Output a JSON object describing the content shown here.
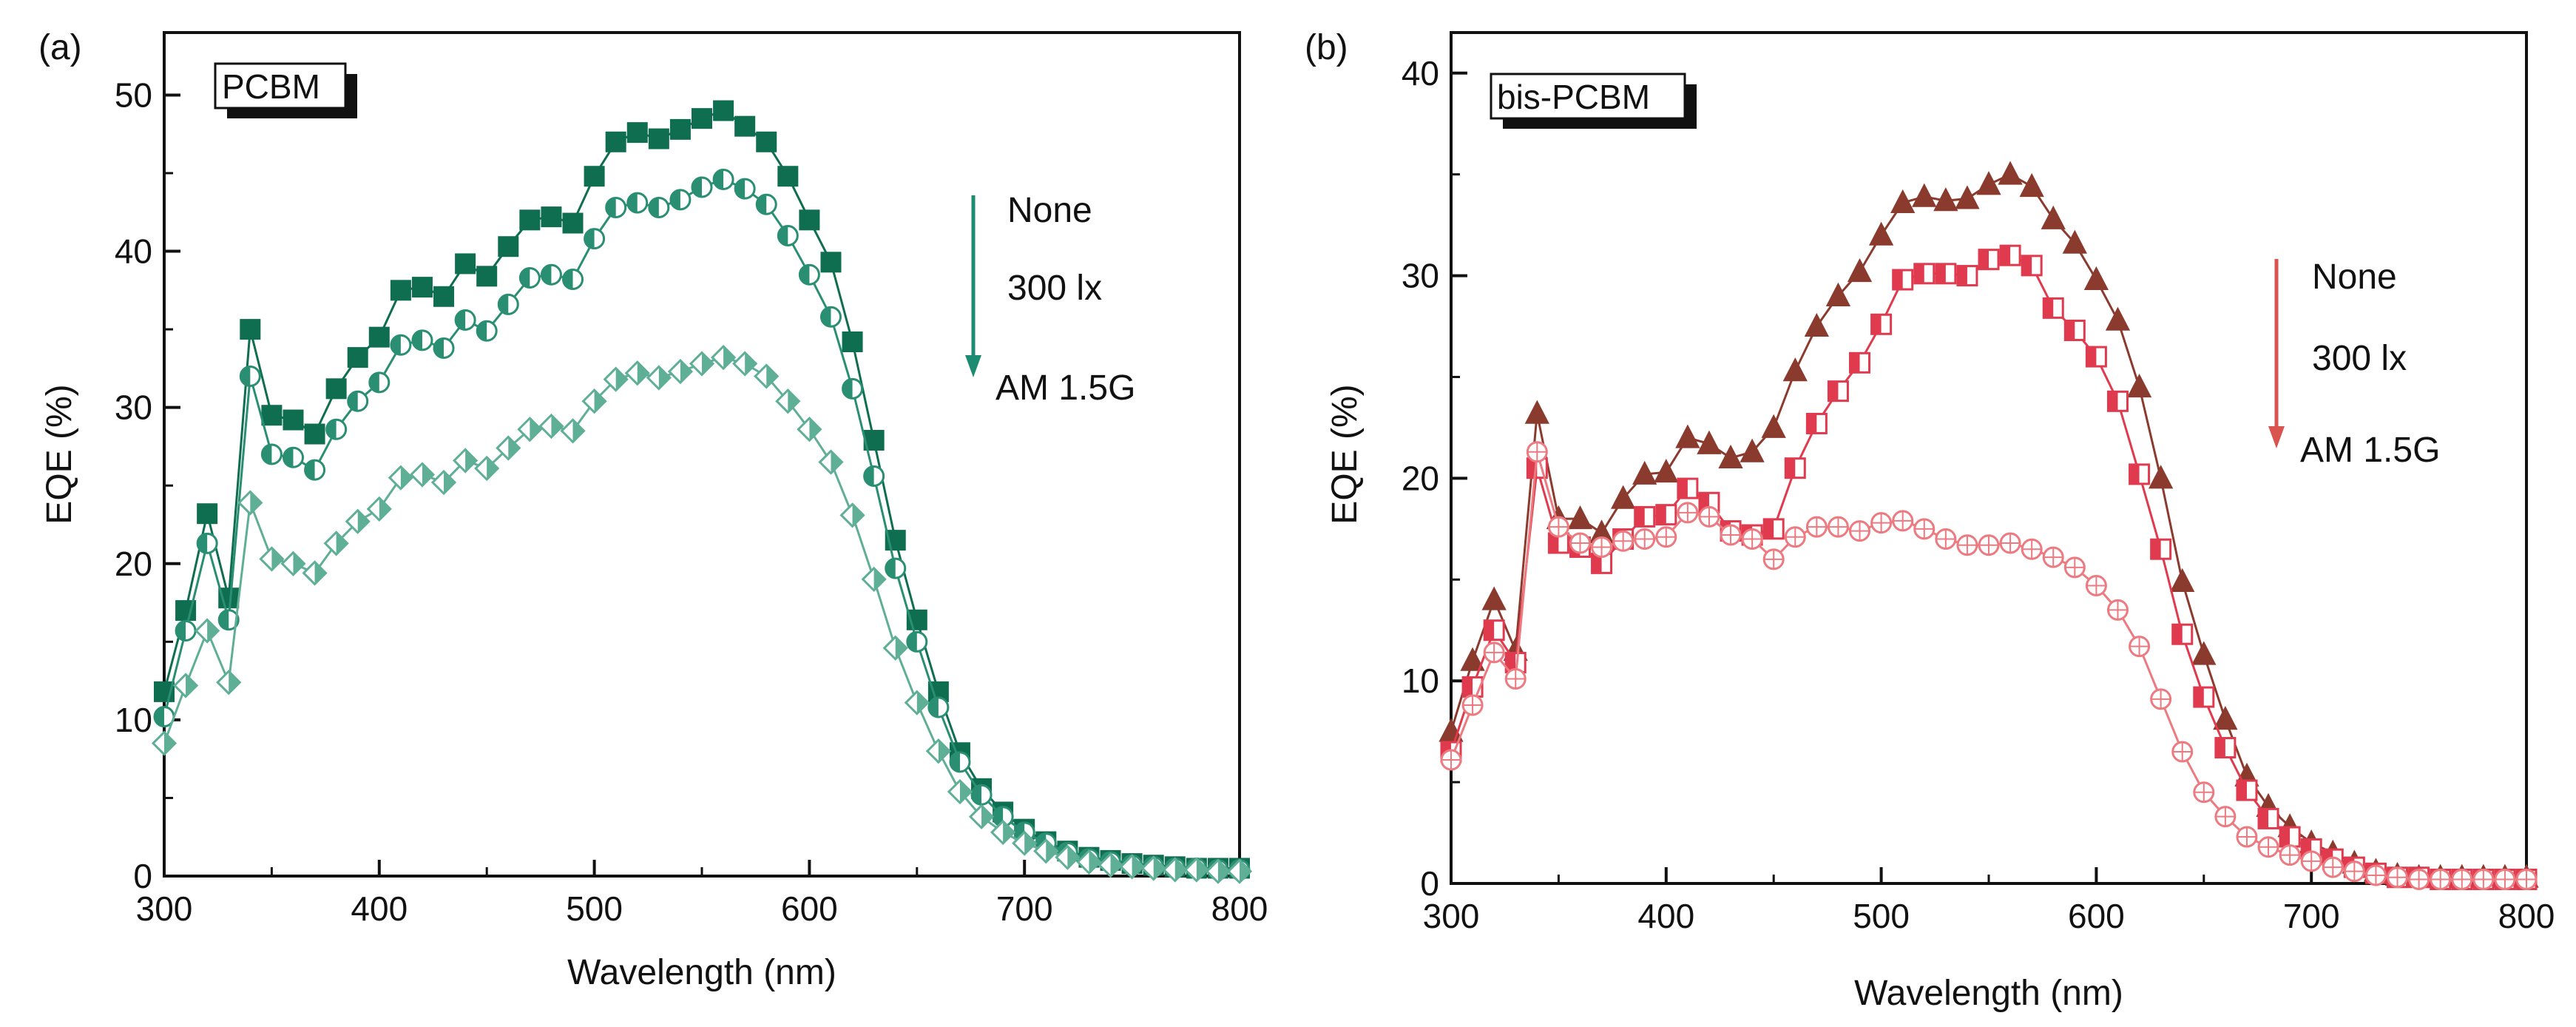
{
  "chart_data": [
    {
      "type": "line",
      "panel_label": "(a)",
      "box_label": "PCBM",
      "xlabel": "Wavelength (nm)",
      "ylabel": "EQE (%)",
      "xlim": [
        300,
        800
      ],
      "ylim": [
        0,
        54
      ],
      "xticks": [
        "300",
        "400",
        "500",
        "600",
        "700",
        "800"
      ],
      "yticks": [
        "0",
        "10",
        "20",
        "30",
        "40",
        "50"
      ],
      "ytick_values": [
        0,
        10,
        20,
        30,
        40,
        50
      ],
      "xtick_values": [
        300,
        400,
        500,
        600,
        700,
        800
      ],
      "arrow_color": "#1d8a72",
      "series": [
        {
          "name": "None",
          "color": "#0f6e50",
          "marker": "square-filled",
          "x": [
            300,
            310,
            320,
            330,
            340,
            350,
            360,
            370,
            380,
            390,
            400,
            410,
            420,
            430,
            440,
            450,
            460,
            470,
            480,
            490,
            500,
            510,
            520,
            530,
            540,
            550,
            560,
            570,
            580,
            590,
            600,
            610,
            620,
            630,
            640,
            650,
            660,
            670,
            680,
            690,
            700,
            710,
            720,
            730,
            740,
            750,
            760,
            770,
            780,
            790,
            800
          ],
          "values": [
            11.8,
            17.0,
            23.2,
            17.8,
            35.0,
            29.5,
            29.2,
            28.3,
            31.2,
            33.2,
            34.5,
            37.5,
            37.7,
            37.1,
            39.2,
            38.4,
            40.3,
            42.0,
            42.2,
            41.8,
            44.8,
            47.0,
            47.6,
            47.2,
            47.8,
            48.5,
            49.0,
            48.0,
            47.0,
            44.8,
            42.0,
            39.3,
            34.2,
            27.9,
            21.5,
            16.4,
            11.8,
            7.9,
            5.6,
            4.1,
            3.0,
            2.2,
            1.6,
            1.2,
            1.0,
            0.8,
            0.7,
            0.6,
            0.5,
            0.5,
            0.5
          ]
        },
        {
          "name": "300 lx",
          "color": "#2a8f72",
          "marker": "circle-half",
          "x": [
            300,
            310,
            320,
            330,
            340,
            350,
            360,
            370,
            380,
            390,
            400,
            410,
            420,
            430,
            440,
            450,
            460,
            470,
            480,
            490,
            500,
            510,
            520,
            530,
            540,
            550,
            560,
            570,
            580,
            590,
            600,
            610,
            620,
            630,
            640,
            650,
            660,
            670,
            680,
            690,
            700,
            710,
            720,
            730,
            740,
            750,
            760,
            770,
            780,
            790,
            800
          ],
          "values": [
            10.2,
            15.7,
            21.3,
            16.4,
            32.0,
            27.0,
            26.8,
            26.0,
            28.6,
            30.4,
            31.6,
            34.0,
            34.3,
            33.8,
            35.6,
            34.9,
            36.6,
            38.3,
            38.5,
            38.2,
            40.8,
            42.8,
            43.1,
            42.8,
            43.3,
            44.1,
            44.6,
            44.0,
            43.0,
            41.0,
            38.5,
            35.8,
            31.2,
            25.6,
            19.7,
            15.0,
            10.8,
            7.3,
            5.2,
            3.8,
            2.8,
            2.1,
            1.5,
            1.1,
            0.9,
            0.7,
            0.6,
            0.5,
            0.5,
            0.4,
            0.4
          ]
        },
        {
          "name": "AM 1.5G",
          "color": "#5fae96",
          "marker": "diamond-half",
          "x": [
            300,
            310,
            320,
            330,
            340,
            350,
            360,
            370,
            380,
            390,
            400,
            410,
            420,
            430,
            440,
            450,
            460,
            470,
            480,
            490,
            500,
            510,
            520,
            530,
            540,
            550,
            560,
            570,
            580,
            590,
            600,
            610,
            620,
            630,
            640,
            650,
            660,
            670,
            680,
            690,
            700,
            710,
            720,
            730,
            740,
            750,
            760,
            770,
            780,
            790,
            800
          ],
          "values": [
            8.5,
            12.2,
            15.7,
            12.4,
            23.9,
            20.3,
            20.0,
            19.4,
            21.3,
            22.7,
            23.5,
            25.5,
            25.7,
            25.2,
            26.6,
            26.1,
            27.4,
            28.6,
            28.8,
            28.5,
            30.4,
            31.8,
            32.2,
            31.9,
            32.3,
            32.8,
            33.2,
            32.8,
            32.0,
            30.4,
            28.6,
            26.5,
            23.1,
            19.0,
            14.6,
            11.1,
            8.0,
            5.4,
            3.8,
            2.8,
            2.1,
            1.6,
            1.2,
            0.9,
            0.7,
            0.6,
            0.5,
            0.4,
            0.4,
            0.3,
            0.3
          ]
        }
      ]
    },
    {
      "type": "line",
      "panel_label": "(b)",
      "box_label": "bis-PCBM",
      "xlabel": "Wavelength (nm)",
      "ylabel": "EQE (%)",
      "xlim": [
        300,
        800
      ],
      "ylim": [
        0,
        42
      ],
      "xticks": [
        "300",
        "400",
        "500",
        "600",
        "700",
        "800"
      ],
      "yticks": [
        "0",
        "10",
        "20",
        "30",
        "40"
      ],
      "ytick_values": [
        0,
        10,
        20,
        30,
        40
      ],
      "xtick_values": [
        300,
        400,
        500,
        600,
        700,
        800
      ],
      "arrow_color": "#d9534f",
      "series": [
        {
          "name": "None",
          "color": "#8b3a2e",
          "marker": "triangle-filled",
          "x": [
            300,
            310,
            320,
            330,
            340,
            350,
            360,
            370,
            380,
            390,
            400,
            410,
            420,
            430,
            440,
            450,
            460,
            470,
            480,
            490,
            500,
            510,
            520,
            530,
            540,
            550,
            560,
            570,
            580,
            590,
            600,
            610,
            620,
            630,
            640,
            650,
            660,
            670,
            680,
            690,
            700,
            710,
            720,
            730,
            740,
            750,
            760,
            770,
            780,
            790,
            800
          ],
          "values": [
            7.5,
            11.0,
            14.0,
            11.5,
            23.2,
            18.0,
            18.0,
            17.3,
            19.0,
            20.2,
            20.3,
            22.0,
            21.7,
            21.0,
            21.3,
            22.5,
            25.3,
            27.5,
            29.0,
            30.2,
            32.0,
            33.6,
            33.9,
            33.7,
            33.8,
            34.5,
            35.0,
            34.4,
            32.8,
            31.6,
            29.8,
            27.8,
            24.5,
            20.0,
            14.9,
            11.3,
            8.1,
            5.3,
            3.8,
            2.8,
            2.0,
            1.5,
            1.0,
            0.6,
            0.4,
            0.3,
            0.3,
            0.3,
            0.3,
            0.3,
            0.3
          ]
        },
        {
          "name": "300 lx",
          "color": "#e03a4e",
          "marker": "square-half",
          "x": [
            300,
            310,
            320,
            330,
            340,
            350,
            360,
            370,
            380,
            390,
            400,
            410,
            420,
            430,
            440,
            450,
            460,
            470,
            480,
            490,
            500,
            510,
            520,
            530,
            540,
            550,
            560,
            570,
            580,
            590,
            600,
            610,
            620,
            630,
            640,
            650,
            660,
            670,
            680,
            690,
            700,
            710,
            720,
            730,
            740,
            750,
            760,
            770,
            780,
            790,
            800
          ],
          "values": [
            6.5,
            9.7,
            12.5,
            10.9,
            20.5,
            16.8,
            16.6,
            15.8,
            17.0,
            18.1,
            18.2,
            19.5,
            18.8,
            17.4,
            17.2,
            17.5,
            20.5,
            22.7,
            24.3,
            25.7,
            27.6,
            29.8,
            30.1,
            30.1,
            30.0,
            30.8,
            31.0,
            30.5,
            28.4,
            27.3,
            26.0,
            23.8,
            20.2,
            16.5,
            12.3,
            9.2,
            6.7,
            4.6,
            3.2,
            2.3,
            1.7,
            1.2,
            0.8,
            0.5,
            0.3,
            0.3,
            0.2,
            0.2,
            0.2,
            0.2,
            0.2
          ]
        },
        {
          "name": "AM 1.5G",
          "color": "#ec7a80",
          "marker": "circle-cross",
          "x": [
            300,
            310,
            320,
            330,
            340,
            350,
            360,
            370,
            380,
            390,
            400,
            410,
            420,
            430,
            440,
            450,
            460,
            470,
            480,
            490,
            500,
            510,
            520,
            530,
            540,
            550,
            560,
            570,
            580,
            590,
            600,
            610,
            620,
            630,
            640,
            650,
            660,
            670,
            680,
            690,
            700,
            710,
            720,
            730,
            740,
            750,
            760,
            770,
            780,
            790,
            800
          ],
          "values": [
            6.1,
            8.8,
            11.4,
            10.1,
            21.3,
            17.6,
            16.8,
            16.6,
            16.9,
            17.0,
            17.1,
            18.3,
            18.1,
            17.2,
            17.0,
            16.0,
            17.1,
            17.6,
            17.6,
            17.4,
            17.8,
            17.9,
            17.5,
            17.0,
            16.7,
            16.7,
            16.8,
            16.5,
            16.1,
            15.6,
            14.7,
            13.5,
            11.7,
            9.1,
            6.5,
            4.5,
            3.3,
            2.3,
            1.8,
            1.4,
            1.1,
            0.8,
            0.6,
            0.4,
            0.3,
            0.2,
            0.2,
            0.2,
            0.2,
            0.2,
            0.2
          ]
        }
      ]
    }
  ]
}
